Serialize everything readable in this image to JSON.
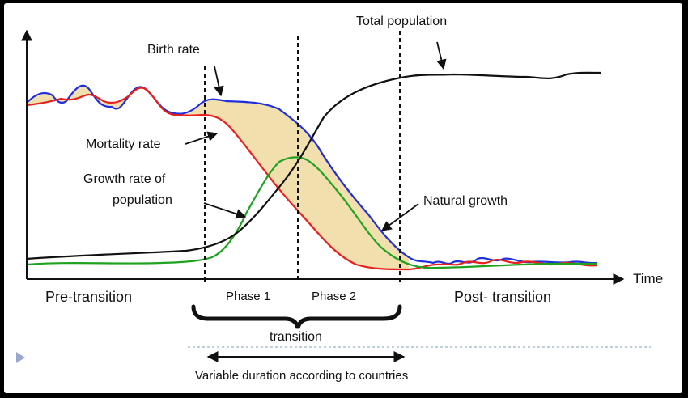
{
  "diagram": {
    "labels": {
      "birth_rate": "Birth rate",
      "mortality_rate": "Mortality rate",
      "growth_rate_line1": "Growth rate of",
      "growth_rate_line2": "population",
      "total_population": "Total population",
      "natural_growth": "Natural growth",
      "x_axis": "Time"
    },
    "phases": {
      "pre": "Pre-transition",
      "phase1": "Phase 1",
      "phase2": "Phase 2",
      "post": "Post- transition",
      "transition": "transition",
      "duration_note": "Variable duration according to countries"
    },
    "colors": {
      "birth_rate": "#1f2fe0",
      "mortality_rate": "#e8201c",
      "growth_rate": "#1fa31f",
      "total_population": "#111111",
      "natural_growth_fill": "#f1dfae",
      "separator": "#7da2b8",
      "bullet": "#9aa7cf"
    }
  }
}
